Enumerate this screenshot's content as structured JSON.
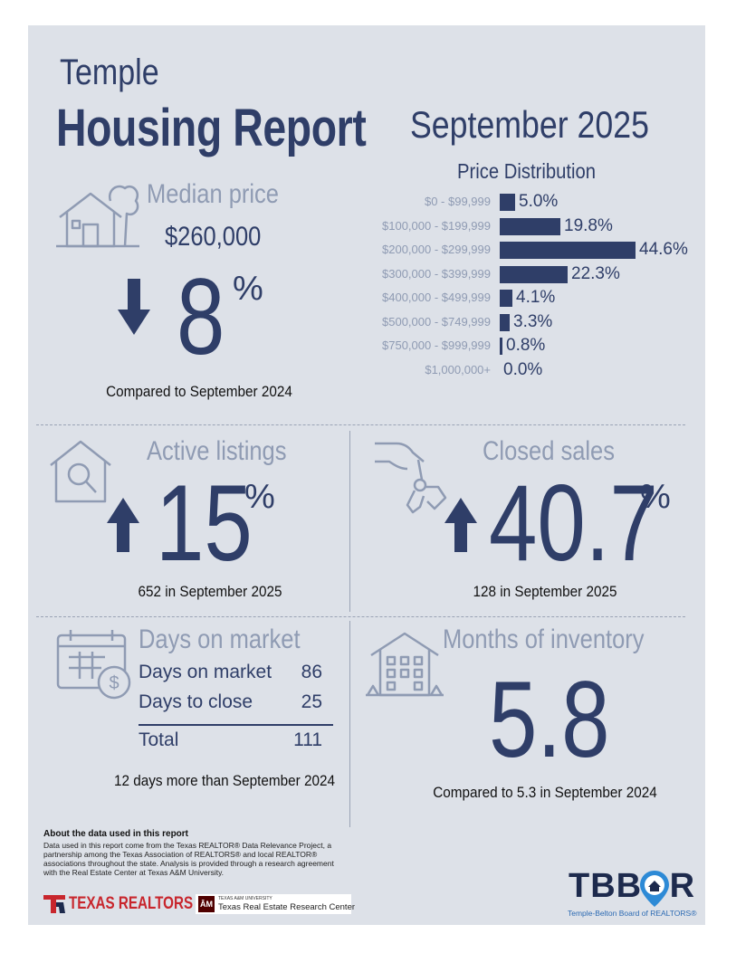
{
  "header": {
    "city": "Temple",
    "title": "Housing Report",
    "month": "September 2025"
  },
  "median_price": {
    "title": "Median price",
    "value": "$260,000",
    "change": "8",
    "unit": "%",
    "direction": "down",
    "caption": "Compared to September 2024"
  },
  "chart_data": {
    "type": "bar",
    "title": "Price Distribution",
    "categories": [
      "$0 - $99,999",
      "$100,000 - $199,999",
      "$200,000 - $299,999",
      "$300,000 - $399,999",
      "$400,000 - $499,999",
      "$500,000 - $749,999",
      "$750,000 - $999,999",
      "$1,000,000+"
    ],
    "values": [
      5.0,
      19.8,
      44.6,
      22.3,
      4.1,
      3.3,
      0.8,
      0.0
    ],
    "labels": [
      "5.0%",
      "19.8%",
      "44.6%",
      "22.3%",
      "4.1%",
      "3.3%",
      "0.8%",
      "0.0%"
    ],
    "orientation": "horizontal",
    "xlim": [
      0,
      44.6
    ]
  },
  "active_listings": {
    "title": "Active listings",
    "change": "15",
    "unit": "%",
    "direction": "up",
    "caption": "652 in September 2025"
  },
  "closed_sales": {
    "title": "Closed sales",
    "change": "40.7",
    "unit": "%",
    "direction": "up",
    "caption": "128 in September 2025"
  },
  "days_on_market": {
    "title": "Days on market",
    "rows": [
      {
        "label": "Days on market",
        "value": "86"
      },
      {
        "label": "Days to close",
        "value": "25"
      }
    ],
    "total_label": "Total",
    "total_value": "111",
    "caption": "12 days more than September 2024"
  },
  "months_inventory": {
    "title": "Months of inventory",
    "value": "5.8",
    "caption": "Compared to 5.3 in September 2024"
  },
  "about": {
    "heading": "About the data used in this report",
    "text": "Data used in this report come from the Texas REALTOR® Data Relevance Project, a partnership among the Texas Association of REALTORS® and local REALTOR® associations throughout the state. Analysis is provided through a research agreement with the Real Estate Center at Texas A&M University."
  },
  "logos": {
    "texas_realtors": "TEXAS REALTORS",
    "tamu_small": "TEXAS A&M UNIVERSITY",
    "tamu_center": "Texas Real Estate Research Center",
    "tbbor": "TBBOR",
    "tbbor_sub": "Temple-Belton Board of REALTORS®"
  },
  "colors": {
    "navy": "#2f3e68",
    "gray": "#8f9bb3",
    "panel": "#dde1e8",
    "red": "#c8262d"
  }
}
